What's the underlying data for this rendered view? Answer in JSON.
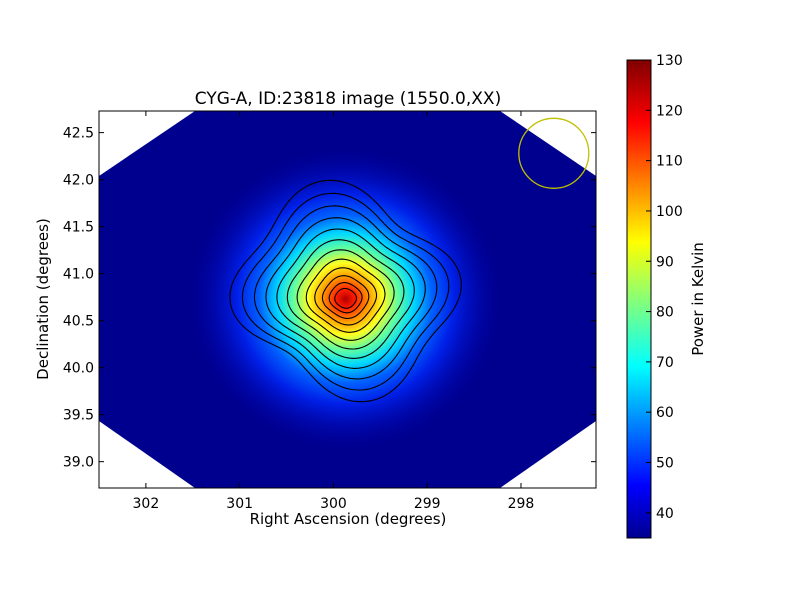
{
  "chart_data": {
    "type": "heatmap",
    "title": "CYG-A, ID:23818 image (1550.0,XX)",
    "xlabel": "Right Ascension (degrees)",
    "ylabel": "Declination (degrees)",
    "x_reversed": true,
    "xlim": [
      302.5,
      297.2
    ],
    "ylim": [
      38.72,
      42.73
    ],
    "x_ticks": [
      302,
      301,
      300,
      299,
      298
    ],
    "x_tick_labels": [
      "302",
      "301",
      "300",
      "299",
      "298"
    ],
    "y_ticks": [
      39.0,
      39.5,
      40.0,
      40.5,
      41.0,
      41.5,
      42.0,
      42.5
    ],
    "y_tick_labels": [
      "39.0",
      "39.5",
      "40.0",
      "40.5",
      "41.0",
      "41.5",
      "42.0",
      "42.5"
    ],
    "colormap": "jet",
    "colorbar": {
      "label": "Power in Kelvin",
      "min": 35,
      "max": 130,
      "ticks": [
        40,
        50,
        60,
        70,
        80,
        90,
        100,
        110,
        120,
        130
      ],
      "tick_labels": [
        "40",
        "50",
        "60",
        "70",
        "80",
        "90",
        "100",
        "110",
        "120",
        "130"
      ]
    },
    "source": {
      "ra": 299.87,
      "dec": 40.73,
      "peak": 130,
      "background": 36
    },
    "contour_count": 12,
    "beam_marker": {
      "ra": 297.65,
      "dec": 42.28,
      "color": "#c0c000"
    },
    "grid": false,
    "legend": "none"
  }
}
